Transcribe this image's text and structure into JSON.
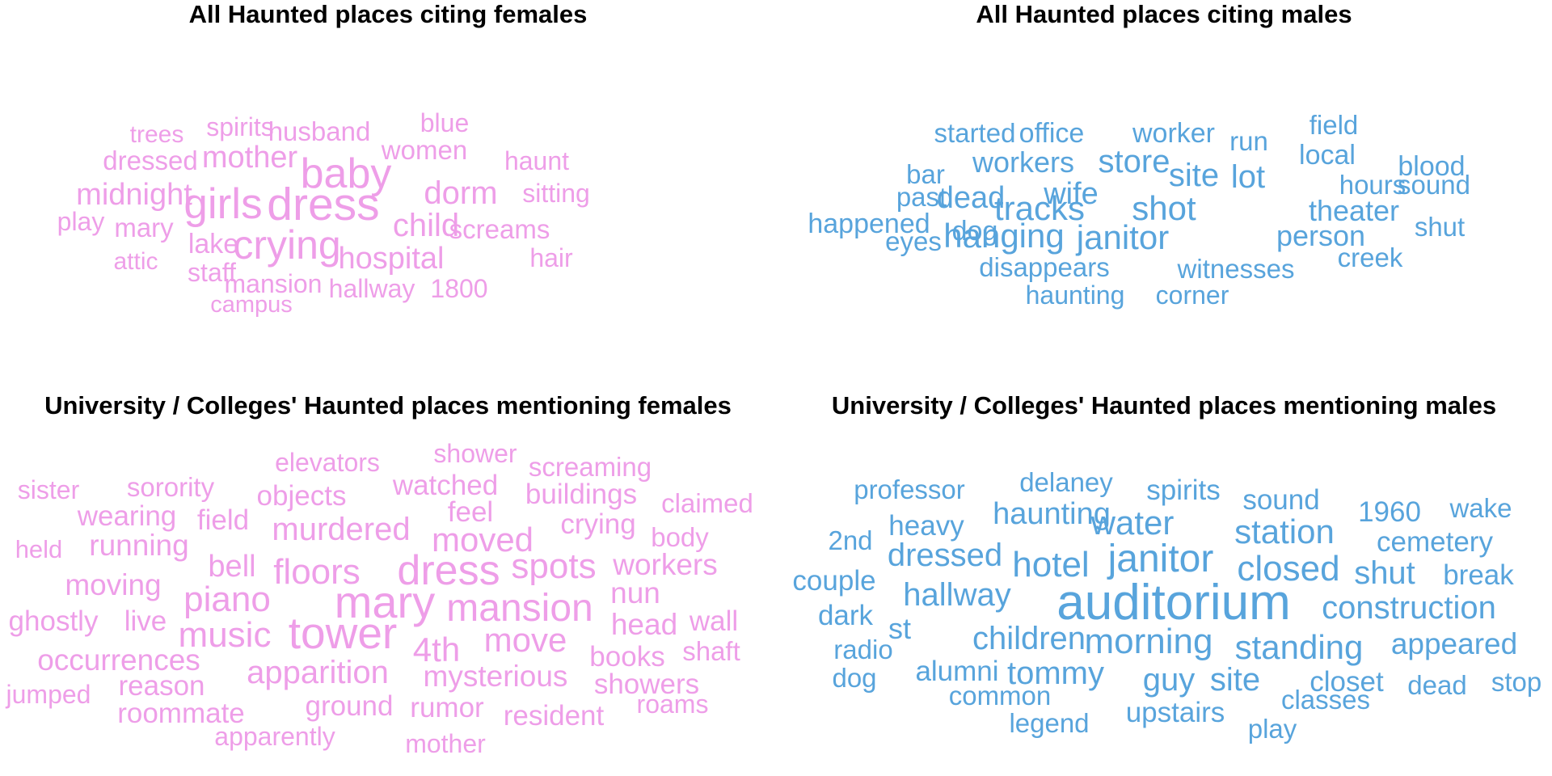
{
  "colors": {
    "female": "#ee9ee8",
    "male": "#58a4dc"
  },
  "chart_data": [
    {
      "type": "wordcloud",
      "title": "All Haunted places citing females",
      "color": "#ee9ee8",
      "words": [
        {
          "text": "dress",
          "weight": 10
        },
        {
          "text": "baby",
          "weight": 9.5
        },
        {
          "text": "girls",
          "weight": 9.5
        },
        {
          "text": "crying",
          "weight": 9
        },
        {
          "text": "dorm",
          "weight": 7.5
        },
        {
          "text": "child",
          "weight": 7.5
        },
        {
          "text": "hospital",
          "weight": 7
        },
        {
          "text": "mother",
          "weight": 7
        },
        {
          "text": "midnight",
          "weight": 7
        },
        {
          "text": "women",
          "weight": 6
        },
        {
          "text": "screams",
          "weight": 6
        },
        {
          "text": "husband",
          "weight": 6
        },
        {
          "text": "lake",
          "weight": 6
        },
        {
          "text": "dressed",
          "weight": 6
        },
        {
          "text": "mary",
          "weight": 6
        },
        {
          "text": "haunt",
          "weight": 6
        },
        {
          "text": "sitting",
          "weight": 6
        },
        {
          "text": "mansion",
          "weight": 6
        },
        {
          "text": "blue",
          "weight": 5.5
        },
        {
          "text": "spirits",
          "weight": 5.5
        },
        {
          "text": "hair",
          "weight": 5.5
        },
        {
          "text": "trees",
          "weight": 5.5
        },
        {
          "text": "play",
          "weight": 5.5
        },
        {
          "text": "attic",
          "weight": 5.5
        },
        {
          "text": "staff",
          "weight": 5.5
        },
        {
          "text": "hallway",
          "weight": 5.5
        },
        {
          "text": "1800",
          "weight": 5.5
        },
        {
          "text": "campus",
          "weight": 5
        }
      ]
    },
    {
      "type": "wordcloud",
      "title": "All Haunted places citing males",
      "color": "#58a4dc",
      "words": [
        {
          "text": "tracks",
          "weight": 9
        },
        {
          "text": "shot",
          "weight": 9
        },
        {
          "text": "hanging",
          "weight": 9
        },
        {
          "text": "janitor",
          "weight": 9
        },
        {
          "text": "store",
          "weight": 8
        },
        {
          "text": "site",
          "weight": 8
        },
        {
          "text": "lot",
          "weight": 8
        },
        {
          "text": "dead",
          "weight": 8
        },
        {
          "text": "wife",
          "weight": 8
        },
        {
          "text": "workers",
          "weight": 7
        },
        {
          "text": "person",
          "weight": 7
        },
        {
          "text": "theater",
          "weight": 7
        },
        {
          "text": "office",
          "weight": 6.5
        },
        {
          "text": "worker",
          "weight": 6.5
        },
        {
          "text": "disappears",
          "weight": 6.5
        },
        {
          "text": "witnesses",
          "weight": 6.5
        },
        {
          "text": "happened",
          "weight": 6.5
        },
        {
          "text": "dog",
          "weight": 6.5
        },
        {
          "text": "local",
          "weight": 6.5
        },
        {
          "text": "hours",
          "weight": 6.5
        },
        {
          "text": "blood",
          "weight": 6.5
        },
        {
          "text": "started",
          "weight": 6
        },
        {
          "text": "run",
          "weight": 6
        },
        {
          "text": "field",
          "weight": 6
        },
        {
          "text": "bar",
          "weight": 6
        },
        {
          "text": "past",
          "weight": 6
        },
        {
          "text": "sound",
          "weight": 6
        },
        {
          "text": "eyes",
          "weight": 6
        },
        {
          "text": "shut",
          "weight": 6
        },
        {
          "text": "creek",
          "weight": 6
        },
        {
          "text": "haunting",
          "weight": 6
        },
        {
          "text": "corner",
          "weight": 6
        }
      ]
    },
    {
      "type": "wordcloud",
      "title": "University / Colleges' Haunted places mentioning females",
      "color": "#ee9ee8",
      "words": [
        {
          "text": "mary",
          "weight": 10
        },
        {
          "text": "tower",
          "weight": 9.5
        },
        {
          "text": "dress",
          "weight": 9.5
        },
        {
          "text": "mansion",
          "weight": 9
        },
        {
          "text": "floors",
          "weight": 8.5
        },
        {
          "text": "piano",
          "weight": 8.5
        },
        {
          "text": "music",
          "weight": 8.5
        },
        {
          "text": "4th",
          "weight": 8.5
        },
        {
          "text": "spots",
          "weight": 8
        },
        {
          "text": "moved",
          "weight": 8
        },
        {
          "text": "murdered",
          "weight": 8
        },
        {
          "text": "move",
          "weight": 8
        },
        {
          "text": "apparition",
          "weight": 8
        },
        {
          "text": "bell",
          "weight": 7.5
        },
        {
          "text": "mysterious",
          "weight": 7
        },
        {
          "text": "occurrences",
          "weight": 7
        },
        {
          "text": "workers",
          "weight": 7
        },
        {
          "text": "moving",
          "weight": 7
        },
        {
          "text": "running",
          "weight": 7
        },
        {
          "text": "head",
          "weight": 7
        },
        {
          "text": "wall",
          "weight": 6.5
        },
        {
          "text": "nun",
          "weight": 6.5
        },
        {
          "text": "live",
          "weight": 6.5
        },
        {
          "text": "ghostly",
          "weight": 6.5
        },
        {
          "text": "objects",
          "weight": 6.5
        },
        {
          "text": "watched",
          "weight": 6.5
        },
        {
          "text": "buildings",
          "weight": 6.5
        },
        {
          "text": "feel",
          "weight": 6.5
        },
        {
          "text": "crying",
          "weight": 6.5
        },
        {
          "text": "body",
          "weight": 6.5
        },
        {
          "text": "field",
          "weight": 6.5
        },
        {
          "text": "wearing",
          "weight": 6.5
        },
        {
          "text": "sorority",
          "weight": 6
        },
        {
          "text": "books",
          "weight": 6.5
        },
        {
          "text": "shaft",
          "weight": 6.5
        },
        {
          "text": "showers",
          "weight": 6.5
        },
        {
          "text": "reason",
          "weight": 6.5
        },
        {
          "text": "ground",
          "weight": 6.5
        },
        {
          "text": "rumor",
          "weight": 6.5
        },
        {
          "text": "resident",
          "weight": 6.5
        },
        {
          "text": "roommate",
          "weight": 6.5
        },
        {
          "text": "screaming",
          "weight": 6
        },
        {
          "text": "claimed",
          "weight": 6
        },
        {
          "text": "elevators",
          "weight": 6
        },
        {
          "text": "shower",
          "weight": 6
        },
        {
          "text": "sister",
          "weight": 6
        },
        {
          "text": "held",
          "weight": 5.5
        },
        {
          "text": "jumped",
          "weight": 6
        },
        {
          "text": "roams",
          "weight": 6
        },
        {
          "text": "apparently",
          "weight": 6
        },
        {
          "text": "mother",
          "weight": 6
        }
      ]
    },
    {
      "type": "wordcloud",
      "title": "University / Colleges' Haunted places mentioning males",
      "color": "#58a4dc",
      "words": [
        {
          "text": "auditorium",
          "weight": 10
        },
        {
          "text": "janitor",
          "weight": 9
        },
        {
          "text": "closed",
          "weight": 8.5
        },
        {
          "text": "hotel",
          "weight": 8.5
        },
        {
          "text": "standing",
          "weight": 8.5
        },
        {
          "text": "morning",
          "weight": 8.5
        },
        {
          "text": "station",
          "weight": 8
        },
        {
          "text": "water",
          "weight": 8
        },
        {
          "text": "hallway",
          "weight": 8
        },
        {
          "text": "shut",
          "weight": 8
        },
        {
          "text": "construction",
          "weight": 8
        },
        {
          "text": "children",
          "weight": 8
        },
        {
          "text": "tommy",
          "weight": 8
        },
        {
          "text": "guy",
          "weight": 8
        },
        {
          "text": "site",
          "weight": 8
        },
        {
          "text": "dressed",
          "weight": 7.5
        },
        {
          "text": "haunting",
          "weight": 7.5
        },
        {
          "text": "appeared",
          "weight": 7
        },
        {
          "text": "cemetery",
          "weight": 7
        },
        {
          "text": "break",
          "weight": 7
        },
        {
          "text": "sound",
          "weight": 7
        },
        {
          "text": "spirits",
          "weight": 7
        },
        {
          "text": "heavy",
          "weight": 7
        },
        {
          "text": "couple",
          "weight": 7
        },
        {
          "text": "alumni",
          "weight": 7
        },
        {
          "text": "closet",
          "weight": 7
        },
        {
          "text": "upstairs",
          "weight": 7
        },
        {
          "text": "1960",
          "weight": 7
        },
        {
          "text": "st",
          "weight": 7.5
        },
        {
          "text": "professor",
          "weight": 6.5
        },
        {
          "text": "delaney",
          "weight": 6.5
        },
        {
          "text": "wake",
          "weight": 6.5
        },
        {
          "text": "2nd",
          "weight": 6.5
        },
        {
          "text": "dark",
          "weight": 6.5
        },
        {
          "text": "radio",
          "weight": 6.5
        },
        {
          "text": "dog",
          "weight": 6.5
        },
        {
          "text": "common",
          "weight": 6.5
        },
        {
          "text": "legend",
          "weight": 6.5
        },
        {
          "text": "play",
          "weight": 6.5
        },
        {
          "text": "classes",
          "weight": 6.5
        },
        {
          "text": "dead",
          "weight": 6.5
        },
        {
          "text": "stop",
          "weight": 6.5
        }
      ]
    }
  ]
}
